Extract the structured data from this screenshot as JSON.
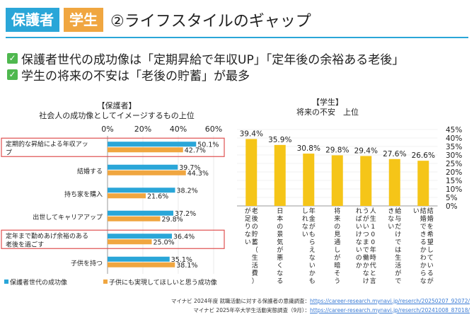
{
  "header": {
    "tag_parent": "保護者",
    "tag_student": "学生",
    "title": "②ライフスタイルのギャップ"
  },
  "points": [
    "保護者世代の成功像は「定期昇給で年収UP」「定年後の余裕ある老後」",
    "学生の将来の不安は「老後の貯蓄」が最多"
  ],
  "colors": {
    "blue": "#2aa6d8",
    "orange": "#f0a640",
    "yellow": "#f5c518",
    "highlight": "#e05050",
    "check": "#4fb84f"
  },
  "chart_data": [
    {
      "type": "bar",
      "orientation": "horizontal",
      "title_line1": "【保護者】",
      "title_line2": "社会人の成功像としてイメージするもの上位",
      "categories": [
        "定期的な昇給による年収アップ",
        "結婚する",
        "持ち家を購入",
        "出世してキャリアアップ",
        "定年まで勤めあげ余裕のある老後を過ごす",
        "子供を持つ"
      ],
      "highlighted": [
        0,
        4
      ],
      "series": [
        {
          "name": "保護者世代の成功像",
          "values": [
            50.1,
            39.7,
            38.2,
            37.2,
            36.4,
            35.1
          ],
          "labels": [
            "50.1%",
            "39.7%",
            "38.2%",
            "37.2%",
            "36.4%",
            "35.1%"
          ],
          "color": "#2aa6d8"
        },
        {
          "name": "子供にも実現してほしいと思う成功像",
          "values": [
            42.7,
            44.3,
            21.6,
            29.8,
            25.0,
            38.1
          ],
          "labels": [
            "42.7%",
            "44.3%",
            "21.6%",
            "29.8%",
            "25.0%",
            "38.1%"
          ],
          "color": "#f0a640"
        }
      ],
      "xlim": [
        0,
        60
      ],
      "ticks": [
        "0%",
        "20%",
        "40%",
        "60%"
      ],
      "legend": [
        "保護者世代の成功像",
        "子供にも実現してほしいと思う成功像"
      ]
    },
    {
      "type": "bar",
      "orientation": "vertical",
      "title_line1": "【学生】",
      "title_line2": "将来の不安　上位",
      "categories": [
        "老後の貯蓄（生活費）が足りない",
        "日本の景気が悪くなる",
        "年金がもらえないかもしれない",
        "将来の見通しが暗そう",
        "人生100年時代と言うがいつまで働かなければいけないのか",
        "給与だけでは生活ができない",
        "結婚を希望しているが結婚できるかわからない"
      ],
      "values": [
        39.4,
        35.9,
        30.8,
        29.8,
        29.4,
        27.6,
        26.6
      ],
      "labels": [
        "39.4%",
        "35.9%",
        "30.8%",
        "29.8%",
        "29.4%",
        "27.6%",
        "26.6%"
      ],
      "color": "#f5c518",
      "ylim": [
        0,
        45
      ],
      "ticks": [
        "0%",
        "5%",
        "10%",
        "15%",
        "20%",
        "25%",
        "30%",
        "35%",
        "40%",
        "45%"
      ]
    }
  ],
  "sources": [
    {
      "text": "マイナビ 2024年度 就職活動に対する保護者の意識調査：",
      "url": "https://career-research.mynavi.jp/reserch/20250207_92072/"
    },
    {
      "text": "マイナビ 2025年卒大学生活動実態調査（9月）：",
      "url": "https://career-research.mynavi.jp/reserch/20241008_87018/"
    }
  ]
}
